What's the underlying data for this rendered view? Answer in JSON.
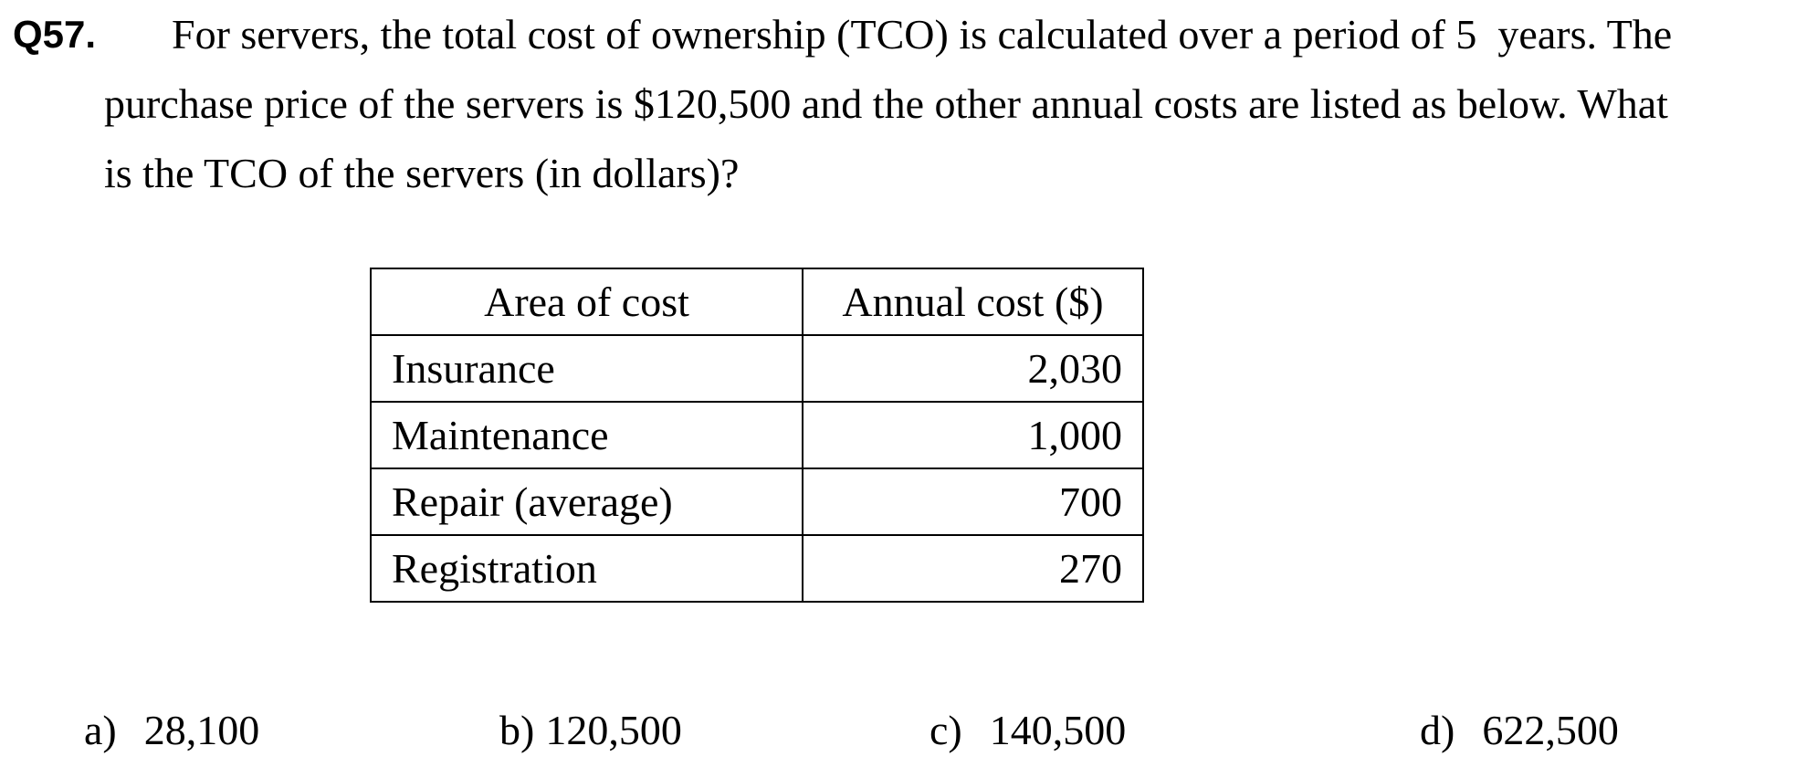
{
  "question": {
    "number": "Q57.",
    "lines": [
      "For servers, the total cost of ownership (TCO) is calculated over a period of 5  years. The",
      "purchase price of the servers is $120,500 and the other annual costs are listed as below. What",
      "is the TCO of the servers (in dollars)?"
    ]
  },
  "table": {
    "headers": [
      "Area of cost",
      "Annual cost ($)"
    ],
    "rows": [
      [
        "Insurance",
        "2,030"
      ],
      [
        "Maintenance",
        "1,000"
      ],
      [
        "Repair (average)",
        "700"
      ],
      [
        "Registration",
        "270"
      ]
    ]
  },
  "options": [
    {
      "label": "a)",
      "value": "28,100"
    },
    {
      "label": "b)",
      "value": "120,500"
    },
    {
      "label": "c)",
      "value": "140,500"
    },
    {
      "label": "d)",
      "value": "622,500"
    }
  ]
}
